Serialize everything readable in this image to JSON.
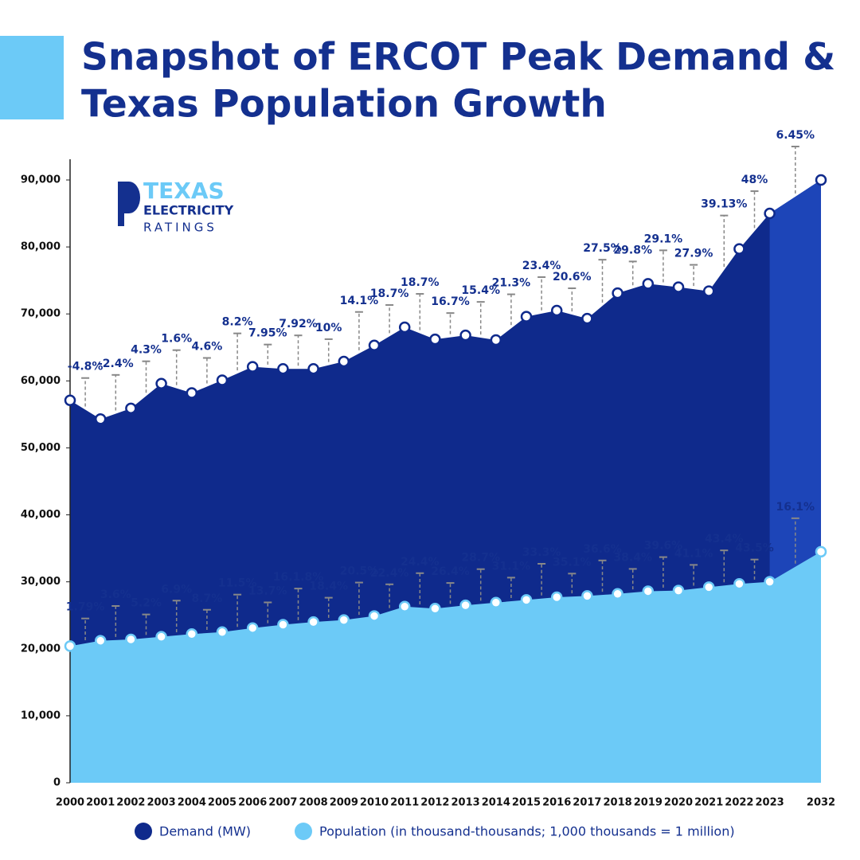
{
  "chart_data": {
    "type": "area",
    "title": [
      "Snapshot of ERCOT Peak Demand &",
      "Texas Population Growth"
    ],
    "logo": [
      "TEXAS",
      "ELECTRICITY",
      "RATINGS"
    ],
    "categories": [
      "2000",
      "2001",
      "2002",
      "2003",
      "2004",
      "2005",
      "2006",
      "2007",
      "2008",
      "2009",
      "2010",
      "2011",
      "2012",
      "2013",
      "2014",
      "2015",
      "2016",
      "2017",
      "2018",
      "2019",
      "2020",
      "2021",
      "2022",
      "2023",
      "2032"
    ],
    "series": [
      {
        "name": "Demand (MW)",
        "color": "#0f2a8c",
        "forecast_color": "#1d45b8",
        "values": [
          57100,
          54300,
          55900,
          59600,
          58200,
          60100,
          62100,
          61800,
          61800,
          62900,
          65300,
          68000,
          66200,
          66800,
          66100,
          69600,
          70500,
          69300,
          73100,
          74500,
          74000,
          73400,
          79700,
          85000,
          90000
        ],
        "growth_labels": [
          "-4.8%",
          "-2.4%",
          "4.3%",
          "1.6%",
          "4.6%",
          "8.2%",
          "7.95%",
          "7.92%",
          "10%",
          "14.1%",
          "18.7%",
          "18.7%",
          "16.7%",
          "15.4%",
          "21.3%",
          "23.4%",
          "20.6%",
          "27.5%",
          "29.8%",
          "29.1%",
          "27.9%",
          "39.13%",
          "48%",
          "6.45%"
        ]
      },
      {
        "name": "Population (in thousand-thousands; 1,000 thousands = 1 million)",
        "color": "#6ccaf7",
        "values": [
          20400,
          21200,
          21400,
          21800,
          22200,
          22500,
          23100,
          23600,
          24000,
          24300,
          24900,
          26300,
          26000,
          26500,
          26900,
          27300,
          27700,
          27900,
          28200,
          28600,
          28700,
          29200,
          29700,
          30000,
          34500
        ],
        "growth_labels": [
          "1.79%",
          "3.6%",
          "5.2%",
          "6.9%",
          "8.7%",
          "11.5%",
          "13.7%",
          "16.1.8%",
          "18.4%",
          "20.5%",
          "22.4%",
          "24.4%",
          "26.4%",
          "28.7%",
          "31.1%",
          "33.3%",
          "35.1%",
          "36.6%",
          "38.4%",
          "39.6%",
          "41.1%",
          "43.4%",
          "43.5%",
          "16.1%"
        ]
      }
    ],
    "ylim": [
      0,
      90000
    ],
    "yticks": [
      0,
      {
        "value": 10000,
        "label": "10,000"
      },
      {
        "value": 20000,
        "label": "20,000"
      },
      {
        "value": 30000,
        "label": "30,000"
      },
      {
        "value": 40000,
        "label": "40,000"
      },
      {
        "value": 50000,
        "label": "50,000"
      },
      {
        "value": 60000,
        "label": "60,000"
      },
      {
        "value": 70000,
        "label": "70,000"
      },
      {
        "value": 80000,
        "label": "80,000"
      },
      {
        "value": 90000,
        "label": "90,000"
      }
    ]
  }
}
